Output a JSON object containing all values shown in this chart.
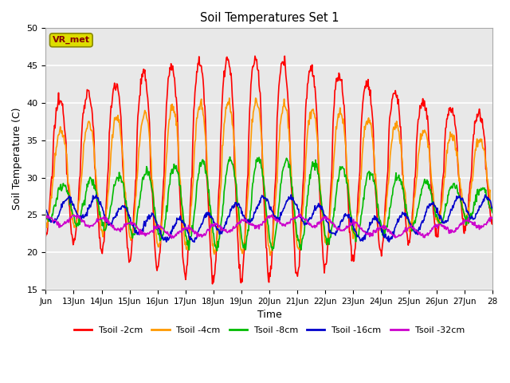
{
  "title": "Soil Temperatures Set 1",
  "xlabel": "Time",
  "ylabel": "Soil Temperature (C)",
  "xlim": [
    0,
    16
  ],
  "ylim": [
    15,
    50
  ],
  "yticks": [
    15,
    20,
    25,
    30,
    35,
    40,
    45,
    50
  ],
  "xtick_labels": [
    "Jun",
    "13Jun",
    "14Jun",
    "15Jun",
    "16Jun",
    "17Jun",
    "18Jun",
    "19Jun",
    "20Jun",
    "21Jun",
    "22Jun",
    "23Jun",
    "24Jun",
    "25Jun",
    "26Jun",
    "27Jun",
    "28"
  ],
  "xtick_positions": [
    0,
    1,
    2,
    3,
    4,
    5,
    6,
    7,
    8,
    9,
    10,
    11,
    12,
    13,
    14,
    15,
    16
  ],
  "series_order": [
    "Tsoil -2cm",
    "Tsoil -4cm",
    "Tsoil -8cm",
    "Tsoil -16cm",
    "Tsoil -32cm"
  ],
  "series": {
    "Tsoil -2cm": {
      "color": "#ff0000",
      "lw": 1.2
    },
    "Tsoil -4cm": {
      "color": "#ff9900",
      "lw": 1.2
    },
    "Tsoil -8cm": {
      "color": "#00bb00",
      "lw": 1.2
    },
    "Tsoil -16cm": {
      "color": "#0000cc",
      "lw": 1.2
    },
    "Tsoil -32cm": {
      "color": "#cc00cc",
      "lw": 1.2
    }
  },
  "legend_label": "VR_met",
  "legend_box_facecolor": "#dddd00",
  "legend_box_edgecolor": "#888800",
  "legend_text_color": "#880000",
  "plot_bg_color": "#e8e8e8",
  "fig_bg_color": "#ffffff",
  "grid_color": "#ffffff",
  "grid_lw": 1.2
}
